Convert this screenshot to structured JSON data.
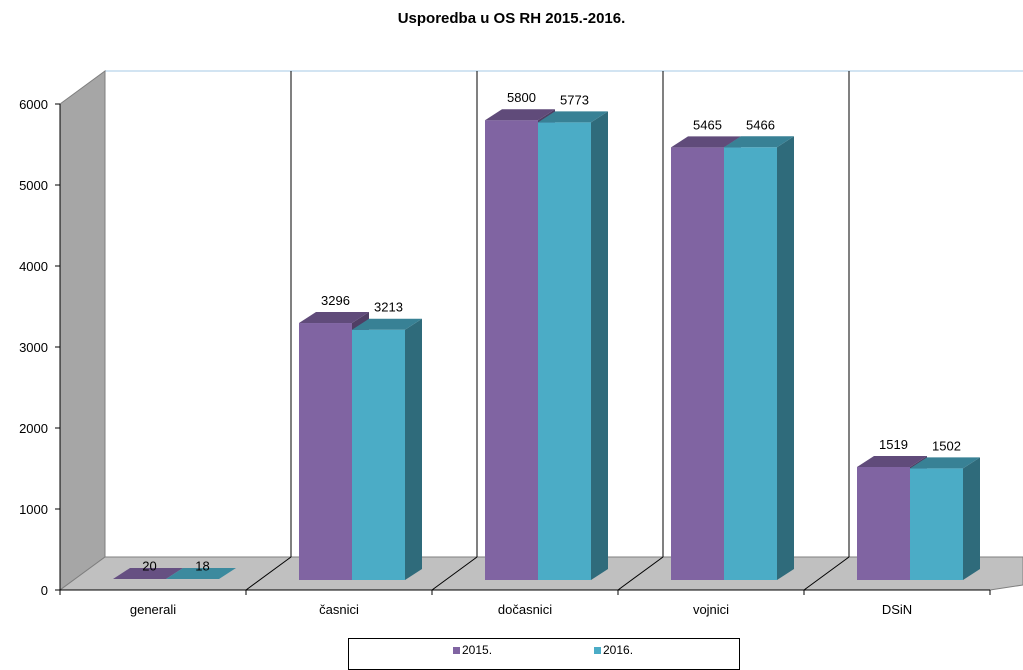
{
  "chart_data": {
    "type": "bar",
    "title": "Usporedba u OS RH 2015.-2016.",
    "categories": [
      "generali",
      "časnici",
      "dočasnici",
      "vojnici",
      "DSiN"
    ],
    "series": [
      {
        "name": "2015.",
        "values": [
          20,
          3296,
          5800,
          5465,
          1519
        ],
        "color": "#8064a2"
      },
      {
        "name": "2016.",
        "values": [
          18,
          3213,
          5773,
          5466,
          1502
        ],
        "color": "#4bacc6"
      }
    ],
    "ylim": [
      0,
      6000
    ],
    "yticks": [
      0,
      1000,
      2000,
      3000,
      4000,
      5000,
      6000
    ],
    "xlabel": "",
    "ylabel": "",
    "legend": "bottom",
    "grid": false,
    "style": "3d-clustered-column"
  }
}
